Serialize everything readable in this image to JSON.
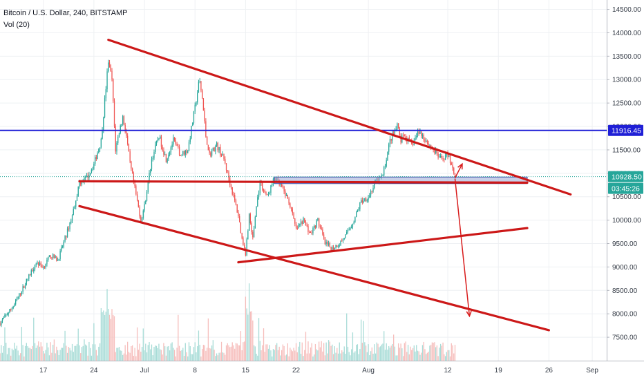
{
  "legend": {
    "symbol": "Bitcoin / U.S. Dollar, 240, BITSTAMP",
    "volume": "Vol (20)"
  },
  "price_tags": {
    "level": "11916.45",
    "last": "10928.50",
    "countdown": "03:45:26"
  },
  "colors": {
    "up": "#26a69a",
    "down": "#ef5350",
    "trendline": "#cc1818",
    "level_line": "#1f1fd6",
    "zone_fill": "#9aa8d6",
    "last_tag": "#26a69a",
    "countdown_tag": "#26a69a",
    "level_tag": "#1f1fd6"
  },
  "chart_data": {
    "type": "candlestick",
    "y_ticks": [
      "14500.00",
      "14000.00",
      "13500.00",
      "13000.00",
      "12500.00",
      "12000.00",
      "11500.00",
      "11000.00",
      "10500.00",
      "10000.00",
      "9500.00",
      "9000.00",
      "8500.00",
      "8000.00",
      "7500.00"
    ],
    "y_tick_values": [
      14500,
      14000,
      13500,
      13000,
      12500,
      12000,
      11500,
      11000,
      10500,
      10000,
      9500,
      9000,
      8500,
      8000,
      7500
    ],
    "x_ticks": [
      "17",
      "24",
      "Jul",
      "8",
      "15",
      "22",
      "Aug",
      "12",
      "19",
      "26",
      "Sep"
    ],
    "x_tick_days": [
      17,
      24,
      31,
      38,
      45,
      52,
      62,
      73,
      80,
      87,
      93
    ],
    "ylim": [
      7000,
      14700
    ],
    "xlim_days": [
      11,
      95
    ],
    "price_path": [
      [
        11,
        7800
      ],
      [
        12,
        8000
      ],
      [
        13,
        8200
      ],
      [
        14,
        8500
      ],
      [
        15,
        8800
      ],
      [
        16,
        9100
      ],
      [
        17,
        9000
      ],
      [
        18,
        9250
      ],
      [
        19,
        9150
      ],
      [
        20,
        9600
      ],
      [
        21,
        10100
      ],
      [
        22,
        10800
      ],
      [
        23,
        10900
      ],
      [
        24,
        11200
      ],
      [
        25,
        11700
      ],
      [
        26,
        13400
      ],
      [
        26.5,
        13000
      ],
      [
        27,
        11500
      ],
      [
        27.5,
        11900
      ],
      [
        28,
        12200
      ],
      [
        28.5,
        11800
      ],
      [
        29,
        11200
      ],
      [
        30,
        10400
      ],
      [
        30.5,
        10000
      ],
      [
        31,
        10300
      ],
      [
        32,
        11300
      ],
      [
        33,
        11800
      ],
      [
        34,
        11300
      ],
      [
        35,
        11700
      ],
      [
        36,
        11400
      ],
      [
        37,
        11500
      ],
      [
        38,
        12400
      ],
      [
        38.6,
        13000
      ],
      [
        39,
        12600
      ],
      [
        39.5,
        11800
      ],
      [
        40,
        11400
      ],
      [
        41,
        11600
      ],
      [
        42,
        11300
      ],
      [
        43,
        10700
      ],
      [
        44,
        10100
      ],
      [
        44.5,
        9600
      ],
      [
        45,
        9300
      ],
      [
        45.5,
        10100
      ],
      [
        46,
        9600
      ],
      [
        46.5,
        10300
      ],
      [
        47,
        10800
      ],
      [
        48,
        10500
      ],
      [
        49,
        10900
      ],
      [
        50,
        10700
      ],
      [
        51,
        10400
      ],
      [
        52,
        9800
      ],
      [
        53,
        10000
      ],
      [
        54,
        9700
      ],
      [
        55,
        10000
      ],
      [
        56,
        9500
      ],
      [
        57,
        9400
      ],
      [
        58,
        9500
      ],
      [
        59,
        9700
      ],
      [
        60,
        10000
      ],
      [
        61,
        10400
      ],
      [
        62,
        10500
      ],
      [
        63,
        10800
      ],
      [
        64,
        10950
      ],
      [
        65,
        11700
      ],
      [
        66,
        12000
      ],
      [
        66.5,
        11700
      ],
      [
        67,
        11800
      ],
      [
        68,
        11600
      ],
      [
        69,
        11900
      ],
      [
        70,
        11700
      ],
      [
        71,
        11500
      ],
      [
        72,
        11300
      ],
      [
        73,
        11400
      ],
      [
        73.5,
        11200
      ],
      [
        74,
        10928.5
      ]
    ],
    "volume_seed": 7,
    "level_11916": 11916.45,
    "trendlines": [
      {
        "name": "upper-channel",
        "from": [
          26,
          13850
        ],
        "to": [
          90,
          10550
        ]
      },
      {
        "name": "lower-channel",
        "from": [
          22,
          10300
        ],
        "to": [
          87,
          7650
        ]
      },
      {
        "name": "horizontal-support",
        "from": [
          22,
          10830
        ],
        "to": [
          84,
          10800
        ]
      },
      {
        "name": "rising-support",
        "from": [
          44,
          9100
        ],
        "to": [
          84,
          9830
        ]
      }
    ],
    "zone": {
      "from_day": 49,
      "to_day": 84,
      "low": 10780,
      "high": 10920
    },
    "arrows": [
      {
        "from": [
          74,
          10900
        ],
        "to": [
          75,
          11200
        ]
      },
      {
        "from": [
          74,
          10880
        ],
        "to": [
          76,
          7950
        ]
      }
    ]
  }
}
